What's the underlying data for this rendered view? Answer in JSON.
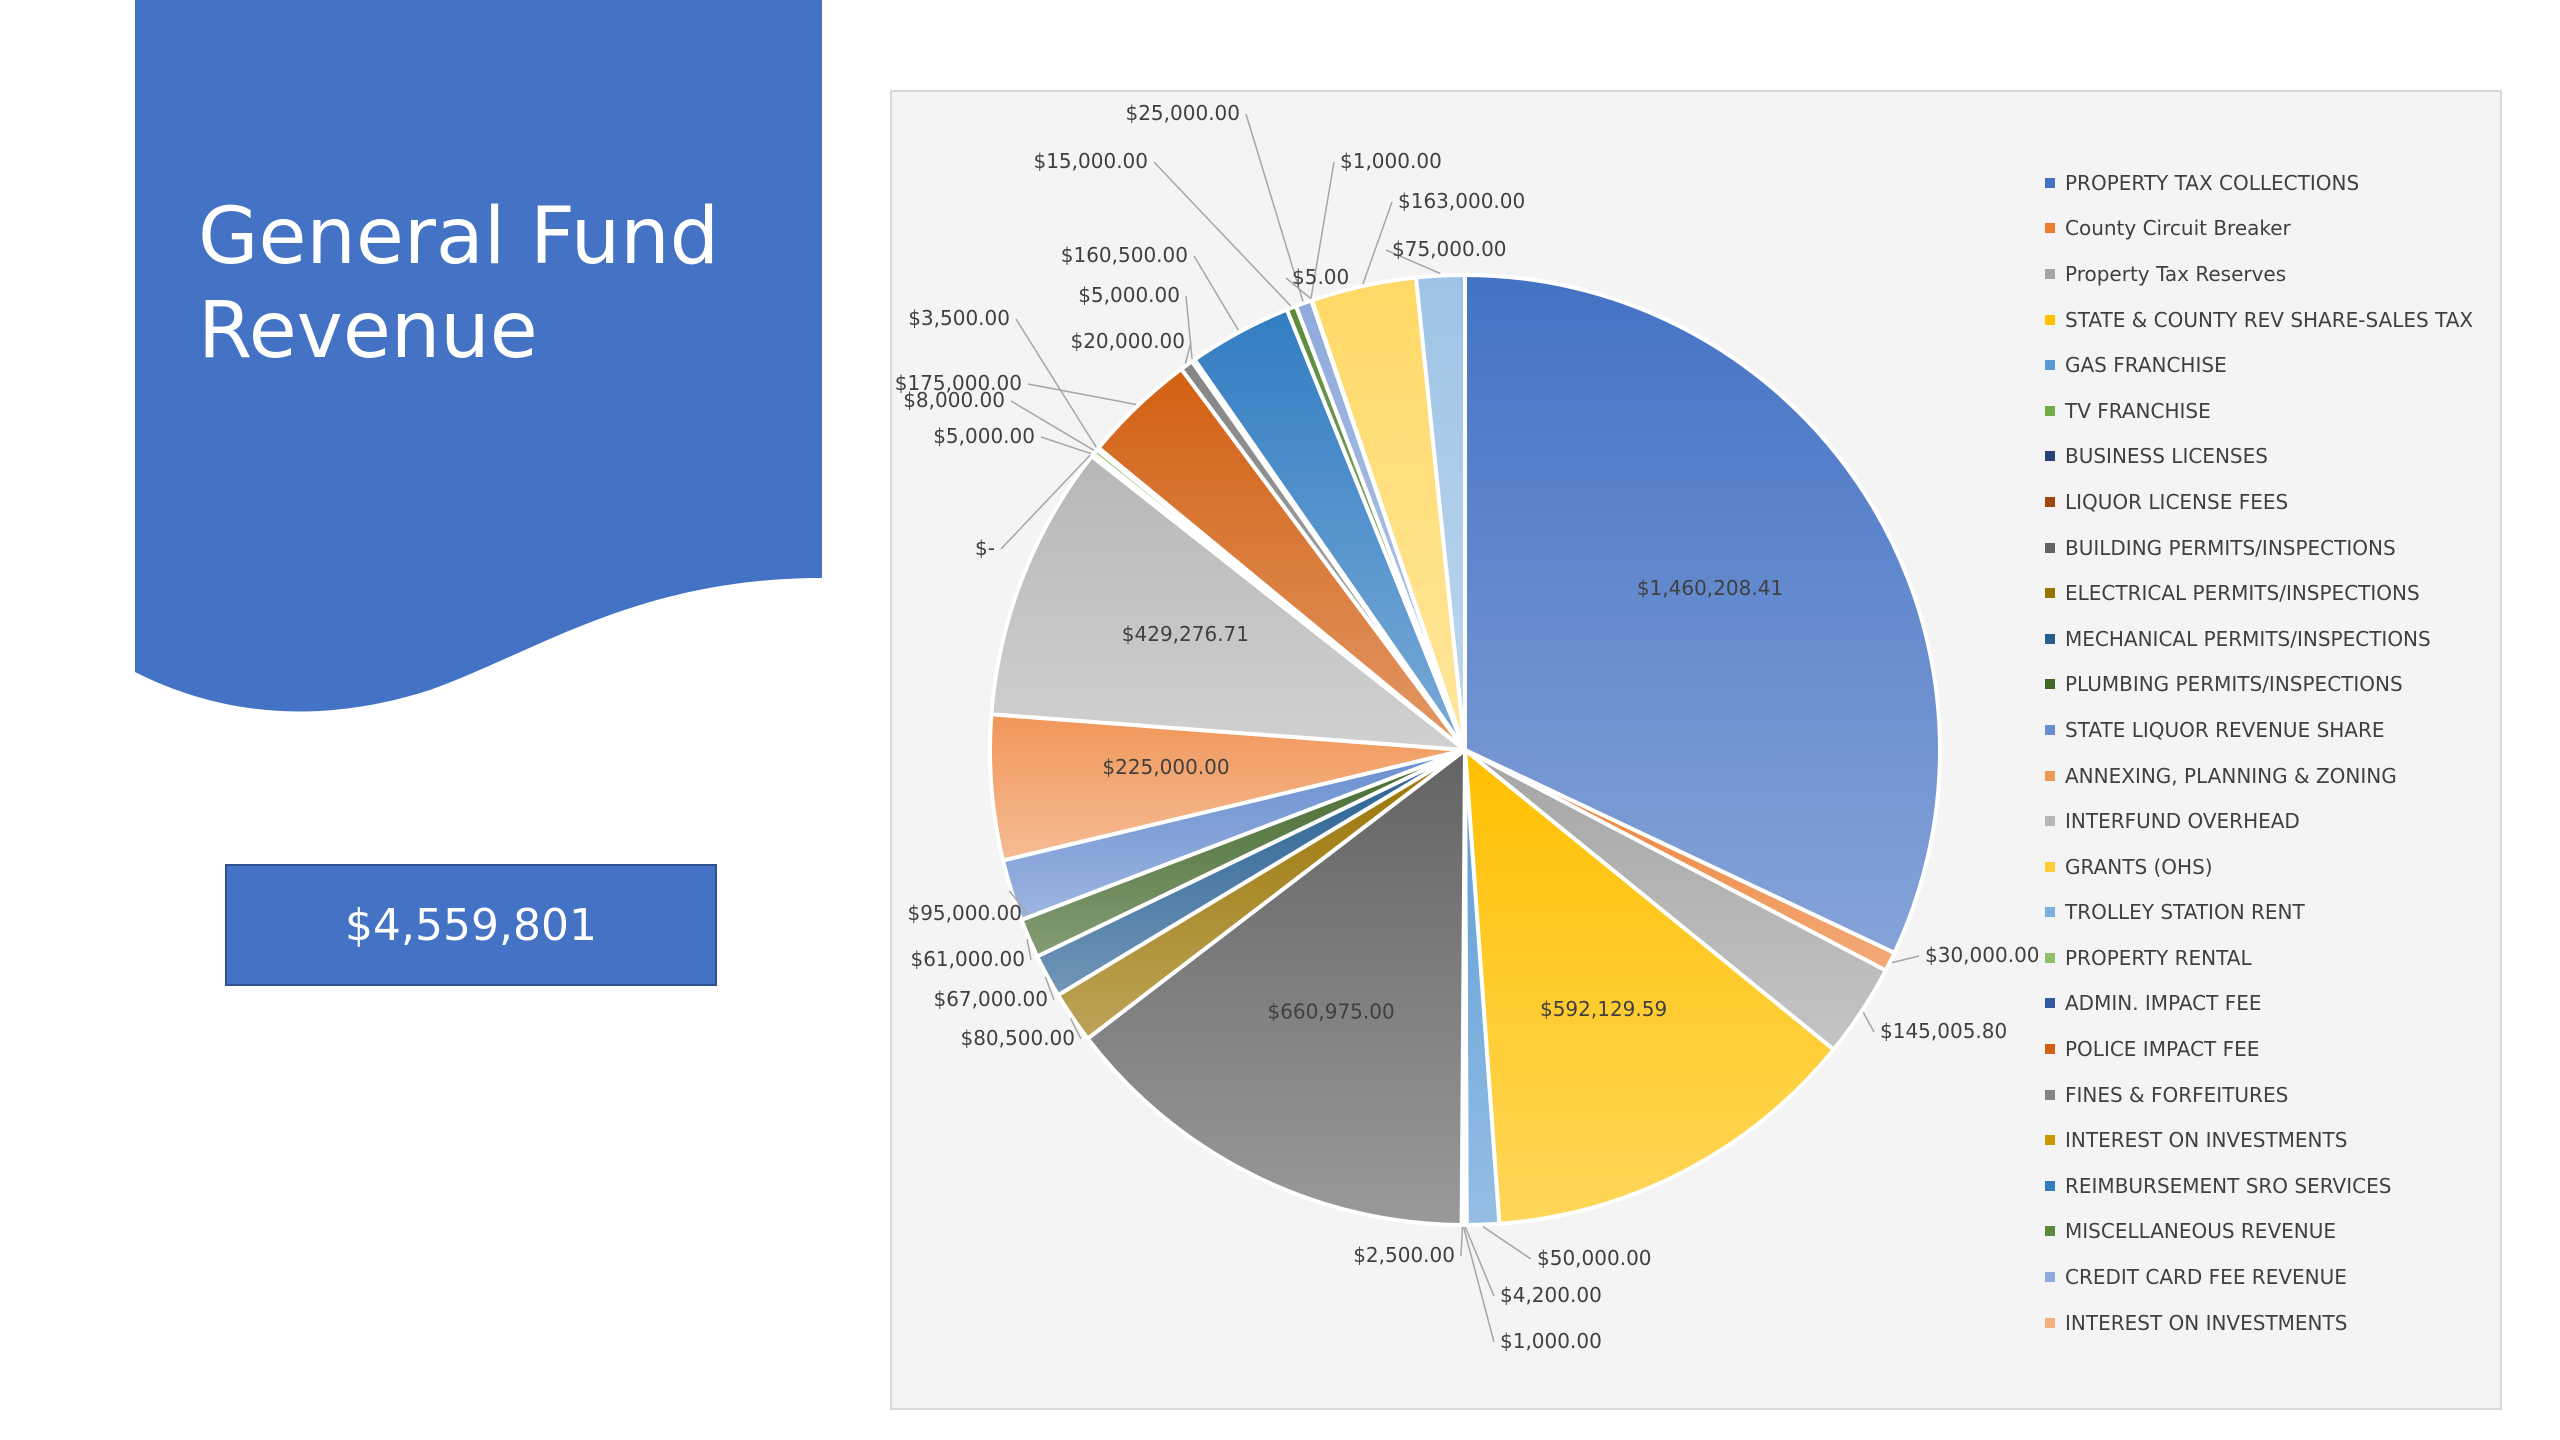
{
  "slide": {
    "title": "General Fund Revenue",
    "total": "$4,559,801",
    "accent_color": "#4472c4"
  },
  "chart_data": {
    "type": "pie",
    "legend_position": "right",
    "slices": [
      {
        "category": "PROPERTY TAX COLLECTIONS",
        "value": 1460208.41,
        "label": "$1,460,208.41",
        "color": "#4472c4"
      },
      {
        "category": "County Circuit Breaker",
        "value": 30000,
        "label": "$30,000.00",
        "color": "#ed7d31"
      },
      {
        "category": "Property Tax Reserves",
        "value": 145005.8,
        "label": "$145,005.80",
        "color": "#a5a5a5"
      },
      {
        "category": "STATE & COUNTY REV SHARE-SALES TAX",
        "value": 592129.59,
        "label": "$592,129.59",
        "color": "#ffc000"
      },
      {
        "category": "GAS FRANCHISE",
        "value": 50000,
        "label": "$50,000.00",
        "color": "#5b9bd5"
      },
      {
        "category": "TV FRANCHISE",
        "value": 4200,
        "label": "$4,200.00",
        "color": "#70ad47"
      },
      {
        "category": "BUSINESS LICENSES",
        "value": 1000,
        "label": "$1,000.00",
        "color": "#264478"
      },
      {
        "category": "LIQUOR LICENSE FEES",
        "value": 2500,
        "label": "$2,500.00",
        "color": "#9e480e"
      },
      {
        "category": "BUILDING PERMITS/INSPECTIONS",
        "value": 660975,
        "label": "$660,975.00",
        "color": "#636363"
      },
      {
        "category": "ELECTRICAL PERMITS/INSPECTIONS",
        "value": 80500,
        "label": "$80,500.00",
        "color": "#997300"
      },
      {
        "category": "MECHANICAL PERMITS/INSPECTIONS",
        "value": 67000,
        "label": "$67,000.00",
        "color": "#255e91"
      },
      {
        "category": "PLUMBING PERMITS/INSPECTIONS",
        "value": 61000,
        "label": "$61,000.00",
        "color": "#43682b"
      },
      {
        "category": "STATE LIQUOR REVENUE SHARE",
        "value": 95000,
        "label": "$95,000.00",
        "color": "#698ed0"
      },
      {
        "category": "ANNEXING, PLANNING & ZONING",
        "value": 225000,
        "label": "$225,000.00",
        "color": "#f1975a"
      },
      {
        "category": "INTERFUND OVERHEAD",
        "value": 429276.71,
        "label": "$429,276.71",
        "color": "#b7b7b7"
      },
      {
        "category": "GRANTS (OHS)",
        "value": 0,
        "label": "$-",
        "color": "#ffcd33"
      },
      {
        "category": "TROLLEY STATION RENT",
        "value": 5000,
        "label": "$5,000.00",
        "color": "#7cafdd"
      },
      {
        "category": "PROPERTY RENTAL",
        "value": 8000,
        "label": "$8,000.00",
        "color": "#8cc168"
      },
      {
        "category": "ADMIN. IMPACT FEE",
        "value": 3500,
        "label": "$3,500.00",
        "color": "#335aa1"
      },
      {
        "category": "POLICE IMPACT FEE",
        "value": 175000,
        "label": "$175,000.00",
        "color": "#d26012"
      },
      {
        "category": "FINES & FORFEITURES",
        "value": 20000,
        "label": "$20,000.00",
        "color": "#848484"
      },
      {
        "category": "INTEREST ON INVESTMENTS",
        "value": 5000,
        "label": "$5,000.00",
        "color": "#cc9a00"
      },
      {
        "category": "REIMBURSEMENT SRO SERVICES",
        "value": 160500,
        "label": "$160,500.00",
        "color": "#327dc2"
      },
      {
        "category": "MISCELLANEOUS REVENUE",
        "value": 15000,
        "label": "$15,000.00",
        "color": "#5a8a39"
      },
      {
        "category": "CREDIT CARD FEE REVENUE",
        "value": 25000,
        "label": "$25,000.00",
        "color": "#8faadc"
      },
      {
        "category": "INTEREST ON INVESTMENTS",
        "value": 5,
        "label": "$5.00",
        "color": "#f4b183"
      },
      {
        "category": "",
        "value": 1000,
        "label": "$1,000.00",
        "color": "#c9c9c9"
      },
      {
        "category": "",
        "value": 163000,
        "label": "$163,000.00",
        "color": "#ffd966"
      },
      {
        "category": "",
        "value": 75000,
        "label": "$75,000.00",
        "color": "#9dc3e6"
      }
    ]
  }
}
